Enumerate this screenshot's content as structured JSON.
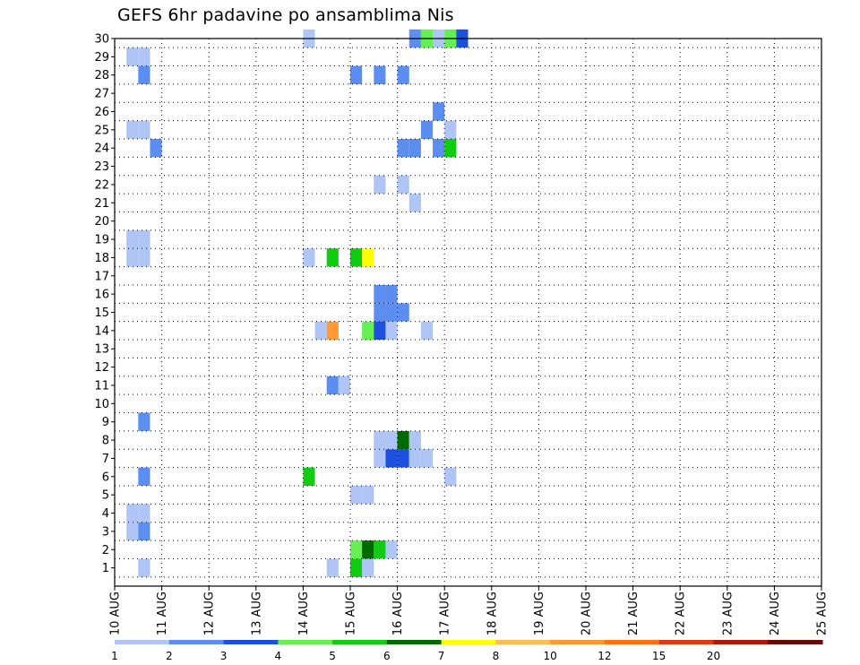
{
  "chart_data": {
    "type": "heatmap",
    "title": "GEFS 6hr padavine po ansamblima Nis",
    "xlabel": "",
    "ylabel": "",
    "x_unit": "6-hour step",
    "x_range": [
      0,
      60
    ],
    "x_tick_labels": [
      "10 AUG",
      "11 AUG",
      "12 AUG",
      "13 AUG",
      "14 AUG",
      "15 AUG",
      "16 AUG",
      "17 AUG",
      "18 AUG",
      "19 AUG",
      "20 AUG",
      "21 AUG",
      "22 AUG",
      "23 AUG",
      "24 AUG",
      "25 AUG"
    ],
    "y_range": [
      0,
      30
    ],
    "y_tick_labels": [
      "1",
      "2",
      "3",
      "4",
      "5",
      "6",
      "7",
      "8",
      "9",
      "10",
      "11",
      "12",
      "13",
      "14",
      "15",
      "16",
      "17",
      "18",
      "19",
      "20",
      "21",
      "22",
      "23",
      "24",
      "25",
      "26",
      "27",
      "28",
      "29",
      "30"
    ],
    "grid": true,
    "legend": {
      "placement": "bottom",
      "labels": [
        "1",
        "2",
        "3",
        "4",
        "5",
        "6",
        "7",
        "8",
        "10",
        "12",
        "15",
        "20"
      ],
      "colors": [
        "#aec5f5",
        "#5b8ef0",
        "#1e50e0",
        "#66ee55",
        "#11cc11",
        "#006b00",
        "#ffff00",
        "#ffbb55",
        "#ff9933",
        "#ff7011",
        "#dd3a11",
        "#aa1a0a",
        "#6a0a04"
      ]
    },
    "cells": [
      {
        "member": 1,
        "step": 4,
        "c": 0
      },
      {
        "member": 1,
        "step": 20,
        "c": 0
      },
      {
        "member": 1,
        "step": 22,
        "c": 4
      },
      {
        "member": 1,
        "step": 23,
        "c": 0
      },
      {
        "member": 2,
        "step": 22,
        "c": 3
      },
      {
        "member": 2,
        "step": 23,
        "c": 5
      },
      {
        "member": 2,
        "step": 24,
        "c": 4
      },
      {
        "member": 2,
        "step": 25,
        "c": 0
      },
      {
        "member": 3,
        "step": 3,
        "c": 0
      },
      {
        "member": 3,
        "step": 4,
        "c": 1
      },
      {
        "member": 4,
        "step": 3,
        "c": 0
      },
      {
        "member": 4,
        "step": 4,
        "c": 0
      },
      {
        "member": 5,
        "step": 22,
        "c": 0
      },
      {
        "member": 5,
        "step": 23,
        "c": 0
      },
      {
        "member": 6,
        "step": 4,
        "c": 1
      },
      {
        "member": 6,
        "step": 18,
        "c": 4
      },
      {
        "member": 6,
        "step": 30,
        "c": 0
      },
      {
        "member": 7,
        "step": 24,
        "c": 0
      },
      {
        "member": 7,
        "step": 25,
        "c": 2
      },
      {
        "member": 7,
        "step": 26,
        "c": 2
      },
      {
        "member": 7,
        "step": 27,
        "c": 0
      },
      {
        "member": 7,
        "step": 28,
        "c": 0
      },
      {
        "member": 8,
        "step": 24,
        "c": 0
      },
      {
        "member": 8,
        "step": 25,
        "c": 0
      },
      {
        "member": 8,
        "step": 26,
        "c": 5
      },
      {
        "member": 8,
        "step": 27,
        "c": 0
      },
      {
        "member": 9,
        "step": 4,
        "c": 1
      },
      {
        "member": 11,
        "step": 20,
        "c": 1
      },
      {
        "member": 11,
        "step": 21,
        "c": 0
      },
      {
        "member": 14,
        "step": 19,
        "c": 0
      },
      {
        "member": 14,
        "step": 20,
        "c": 8
      },
      {
        "member": 14,
        "step": 23,
        "c": 3
      },
      {
        "member": 14,
        "step": 24,
        "c": 2
      },
      {
        "member": 14,
        "step": 25,
        "c": 0
      },
      {
        "member": 14,
        "step": 28,
        "c": 0
      },
      {
        "member": 15,
        "step": 24,
        "c": 1
      },
      {
        "member": 15,
        "step": 25,
        "c": 1
      },
      {
        "member": 15,
        "step": 26,
        "c": 1
      },
      {
        "member": 16,
        "step": 24,
        "c": 1
      },
      {
        "member": 16,
        "step": 25,
        "c": 1
      },
      {
        "member": 18,
        "step": 3,
        "c": 0
      },
      {
        "member": 18,
        "step": 4,
        "c": 0
      },
      {
        "member": 18,
        "step": 18,
        "c": 0
      },
      {
        "member": 18,
        "step": 20,
        "c": 4
      },
      {
        "member": 18,
        "step": 22,
        "c": 4
      },
      {
        "member": 18,
        "step": 23,
        "c": 6
      },
      {
        "member": 19,
        "step": 3,
        "c": 0
      },
      {
        "member": 19,
        "step": 4,
        "c": 0
      },
      {
        "member": 21,
        "step": 27,
        "c": 0
      },
      {
        "member": 22,
        "step": 24,
        "c": 0
      },
      {
        "member": 22,
        "step": 26,
        "c": 0
      },
      {
        "member": 24,
        "step": 5,
        "c": 1
      },
      {
        "member": 24,
        "step": 26,
        "c": 1
      },
      {
        "member": 24,
        "step": 27,
        "c": 1
      },
      {
        "member": 24,
        "step": 29,
        "c": 1
      },
      {
        "member": 24,
        "step": 30,
        "c": 4
      },
      {
        "member": 25,
        "step": 3,
        "c": 0
      },
      {
        "member": 25,
        "step": 4,
        "c": 0
      },
      {
        "member": 25,
        "step": 28,
        "c": 1
      },
      {
        "member": 25,
        "step": 30,
        "c": 0
      },
      {
        "member": 26,
        "step": 29,
        "c": 1
      },
      {
        "member": 28,
        "step": 4,
        "c": 1
      },
      {
        "member": 28,
        "step": 22,
        "c": 1
      },
      {
        "member": 28,
        "step": 24,
        "c": 1
      },
      {
        "member": 28,
        "step": 26,
        "c": 1
      },
      {
        "member": 29,
        "step": 3,
        "c": 0
      },
      {
        "member": 29,
        "step": 4,
        "c": 0
      },
      {
        "member": 30,
        "step": 18,
        "c": 0
      },
      {
        "member": 30,
        "step": 27,
        "c": 1
      },
      {
        "member": 30,
        "step": 28,
        "c": 3
      },
      {
        "member": 30,
        "step": 29,
        "c": 0
      },
      {
        "member": 30,
        "step": 30,
        "c": 3
      },
      {
        "member": 30,
        "step": 31,
        "c": 2
      }
    ]
  }
}
